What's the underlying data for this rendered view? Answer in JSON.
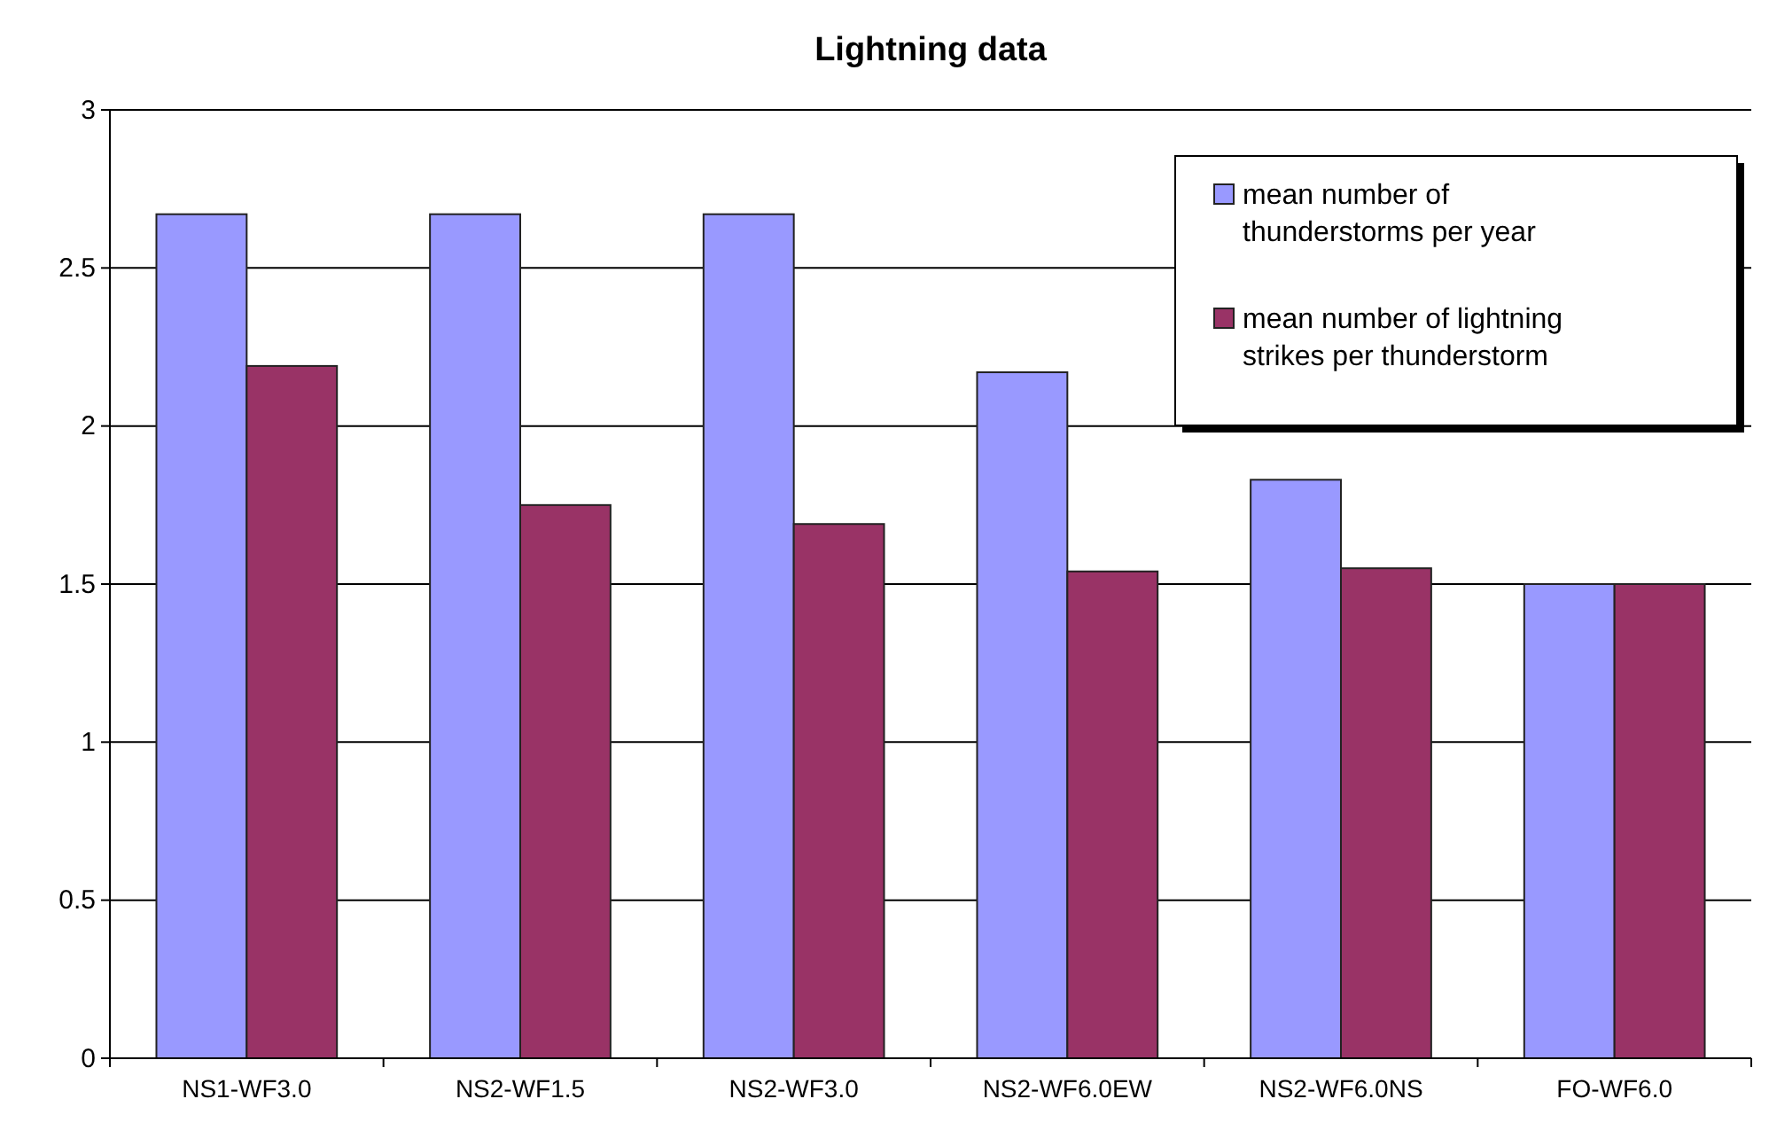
{
  "chart_data": {
    "type": "bar",
    "title": "Lightning data",
    "categories": [
      "NS1-WF3.0",
      "NS2-WF1.5",
      "NS2-WF3.0",
      "NS2-WF6.0EW",
      "NS2-WF6.0NS",
      "FO-WF6.0"
    ],
    "series": [
      {
        "name": "mean number of thunderstorms per year",
        "color": "#9999ff",
        "values": [
          2.67,
          2.67,
          2.67,
          2.17,
          1.83,
          1.5
        ]
      },
      {
        "name": "mean number of lightning strikes per thunderstorm",
        "color": "#993366",
        "values": [
          2.19,
          1.75,
          1.69,
          1.54,
          1.55,
          1.5
        ]
      }
    ],
    "ylim": [
      0,
      3
    ],
    "yticks": [
      0,
      0.5,
      1,
      1.5,
      2,
      2.5,
      3
    ],
    "grid": "y",
    "legend": "top right"
  }
}
